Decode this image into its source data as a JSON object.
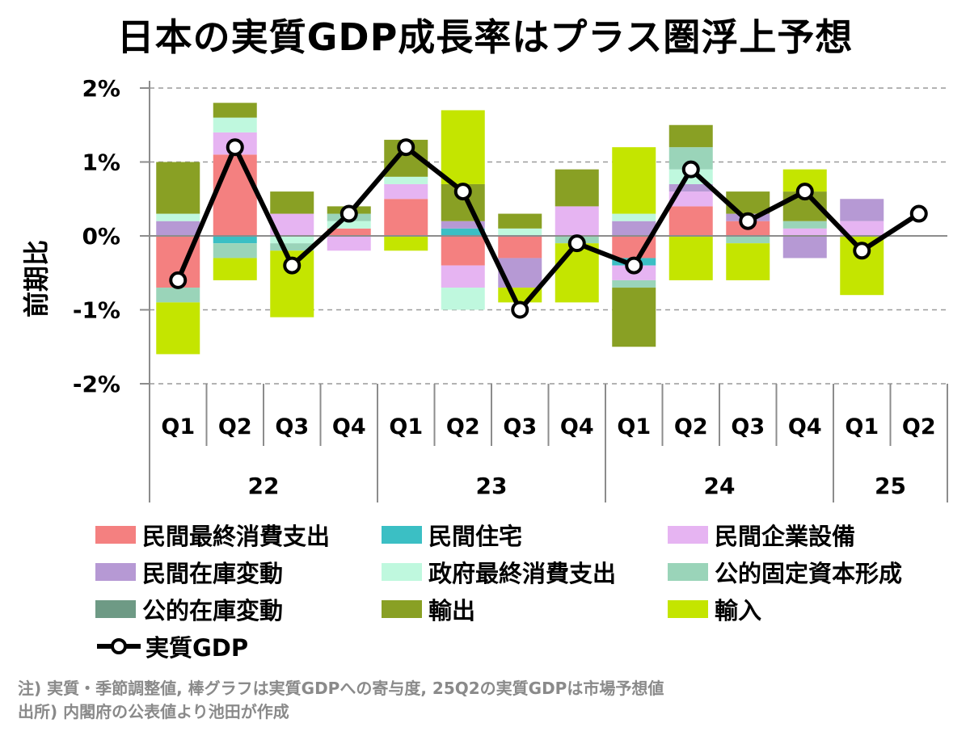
{
  "title": "日本の実質GDP成長率はプラス圏浮上予想",
  "chart_data": {
    "type": "bar",
    "stacked": true,
    "title": "日本の実質GDP成長率はプラス圏浮上予想",
    "ylabel": "前期比",
    "ylim": [
      -2,
      2
    ],
    "yticks": [
      2,
      1,
      0,
      -1,
      -2
    ],
    "ytick_labels": [
      "2%",
      "1%",
      "0%",
      "-1%",
      "-2%"
    ],
    "grid": "dashed horizontal",
    "categories": [
      "Q1",
      "Q2",
      "Q3",
      "Q4",
      "Q1",
      "Q2",
      "Q3",
      "Q4",
      "Q1",
      "Q2",
      "Q3",
      "Q4",
      "Q1",
      "Q2"
    ],
    "years": [
      {
        "label": "22",
        "span": 4
      },
      {
        "label": "23",
        "span": 4
      },
      {
        "label": "24",
        "span": 4
      },
      {
        "label": "25",
        "span": 2
      }
    ],
    "series": [
      {
        "name": "民間最終消費支出",
        "color": "#F48080",
        "values": [
          -0.7,
          1.1,
          0.0,
          0.1,
          0.5,
          -0.4,
          -0.3,
          0.0,
          -0.3,
          0.4,
          0.2,
          0.0,
          0.0,
          0.0
        ]
      },
      {
        "name": "民間住宅",
        "color": "#3BBFC4",
        "values": [
          0.0,
          -0.1,
          0.0,
          0.0,
          0.0,
          0.1,
          0.0,
          0.0,
          -0.1,
          0.0,
          0.0,
          0.0,
          0.0,
          0.0
        ]
      },
      {
        "name": "民間企業設備",
        "color": "#E6B4F2",
        "values": [
          0.0,
          0.3,
          0.3,
          -0.2,
          0.2,
          -0.3,
          0.0,
          0.4,
          -0.2,
          0.2,
          0.0,
          0.1,
          0.2,
          0.0
        ]
      },
      {
        "name": "民間在庫変動",
        "color": "#B699D4",
        "values": [
          0.2,
          0.0,
          0.0,
          0.0,
          0.0,
          0.1,
          -0.4,
          0.0,
          0.2,
          0.1,
          0.1,
          -0.3,
          0.3,
          0.0
        ]
      },
      {
        "name": "政府最終消費支出",
        "color": "#BFF8DE",
        "values": [
          0.1,
          0.2,
          -0.1,
          0.1,
          0.1,
          -0.3,
          0.1,
          0.0,
          0.1,
          0.2,
          0.0,
          0.0,
          0.0,
          0.0
        ]
      },
      {
        "name": "公的固定資本形成",
        "color": "#9AD4B9",
        "values": [
          -0.2,
          -0.2,
          -0.1,
          0.1,
          0.0,
          0.0,
          0.0,
          -0.1,
          -0.1,
          0.3,
          -0.1,
          0.1,
          0.0,
          0.0
        ]
      },
      {
        "name": "公的在庫変動",
        "color": "#6E9A85",
        "values": [
          0.0,
          0.0,
          0.0,
          0.0,
          0.0,
          0.0,
          0.0,
          0.0,
          0.0,
          0.0,
          0.0,
          0.0,
          0.0,
          0.0
        ]
      },
      {
        "name": "輸出",
        "color": "#89A024",
        "values": [
          0.7,
          0.2,
          0.3,
          0.1,
          0.5,
          0.5,
          0.2,
          0.5,
          -0.8,
          0.3,
          0.3,
          0.4,
          0.0,
          0.0
        ]
      },
      {
        "name": "輸入",
        "color": "#C4E500",
        "values": [
          -0.7,
          -0.3,
          -0.9,
          0.0,
          -0.2,
          1.0,
          -0.2,
          -0.8,
          0.9,
          -0.6,
          -0.5,
          0.3,
          -0.8,
          0.0
        ]
      }
    ],
    "line": {
      "name": "実質GDP",
      "color": "#000000",
      "values": [
        -0.6,
        1.2,
        -0.4,
        0.3,
        1.2,
        0.6,
        -1.0,
        -0.1,
        -0.4,
        0.9,
        0.2,
        0.6,
        -0.2,
        0.3
      ]
    },
    "legend_position": "bottom"
  },
  "notes": {
    "line1": "注) 実質・季節調整値, 棒グラフは実質GDPへの寄与度, 25Q2の実質GDPは市場予想値",
    "line2": "出所) 内閣府の公表値より池田が作成"
  }
}
